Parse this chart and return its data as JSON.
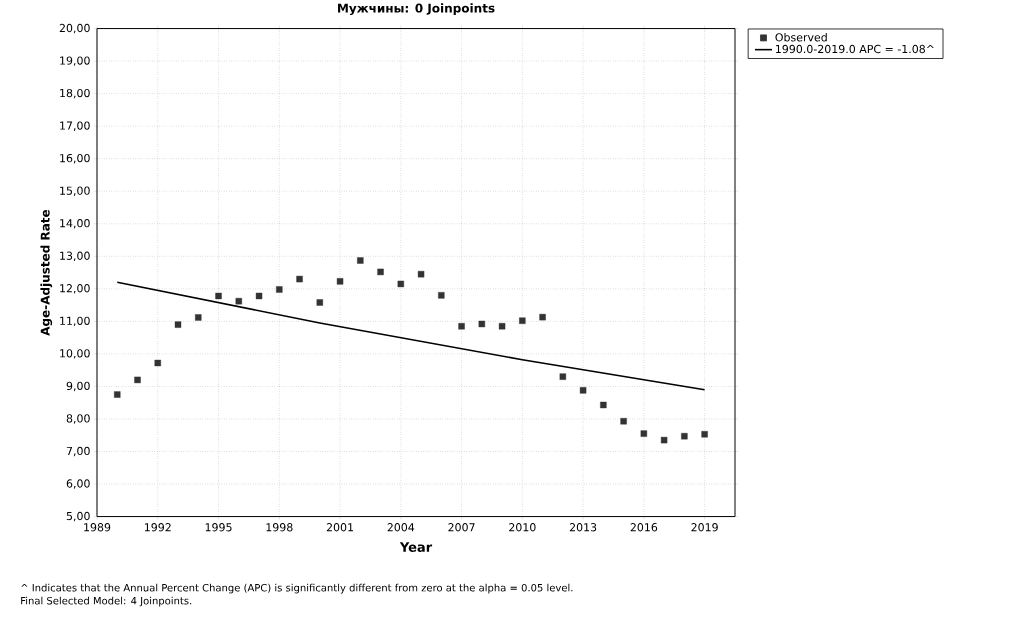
{
  "chart_data": {
    "type": "scatter",
    "title": "Мужчины: 0 Joinpoints",
    "xlabel": "Year",
    "ylabel": "Age-Adjusted Rate",
    "xlim": [
      1989,
      2020.5
    ],
    "xticks": [
      1989,
      1992,
      1995,
      1998,
      2001,
      2004,
      2007,
      2010,
      2013,
      2016,
      2019
    ],
    "ylim": [
      5,
      20
    ],
    "yticks": [
      {
        "value": 5,
        "label": "5,00"
      },
      {
        "value": 6,
        "label": "6,00"
      },
      {
        "value": 7,
        "label": "7,00"
      },
      {
        "value": 8,
        "label": "8,00"
      },
      {
        "value": 9,
        "label": "9,00"
      },
      {
        "value": 10,
        "label": "10,00"
      },
      {
        "value": 11,
        "label": "11,00"
      },
      {
        "value": 12,
        "label": "12,00"
      },
      {
        "value": 13,
        "label": "13,00"
      },
      {
        "value": 14,
        "label": "14,00"
      },
      {
        "value": 15,
        "label": "15,00"
      },
      {
        "value": 16,
        "label": "16,00"
      },
      {
        "value": 17,
        "label": "17,00"
      },
      {
        "value": 18,
        "label": "18,00"
      },
      {
        "value": 19,
        "label": "19,00"
      },
      {
        "value": 20,
        "label": "20,00"
      }
    ],
    "grid": true,
    "legend": "top right",
    "series": [
      {
        "name": "Observed",
        "marker": "square",
        "color": "#333333",
        "x": [
          1990,
          1991,
          1992,
          1993,
          1994,
          1995,
          1996,
          1997,
          1998,
          1999,
          2000,
          2001,
          2002,
          2003,
          2004,
          2005,
          2006,
          2007,
          2008,
          2009,
          2010,
          2011,
          2012,
          2013,
          2014,
          2015,
          2016,
          2017,
          2018,
          2019
        ],
        "values": [
          8.75,
          9.2,
          9.72,
          10.9,
          11.12,
          11.78,
          11.62,
          11.78,
          11.98,
          12.3,
          11.58,
          12.23,
          12.87,
          12.52,
          12.15,
          12.45,
          11.8,
          10.85,
          10.92,
          10.85,
          11.02,
          11.13,
          9.3,
          8.88,
          8.43,
          7.93,
          7.55,
          7.35,
          7.47,
          7.53
        ]
      },
      {
        "name": "1990.0-2019.0 APC  = -1.08^",
        "type": "line",
        "marker": "none",
        "color": "#000000",
        "line_style": "solid",
        "x": [
          1990,
          2000,
          2010,
          2019
        ],
        "values": [
          12.2,
          10.95,
          9.82,
          8.9
        ]
      }
    ],
    "annotations": [
      "^ Indicates that the Annual Percent Change (APC) is significantly different from zero at the alpha = 0.05 level.",
      "Final Selected Model: 4 Joinpoints."
    ]
  }
}
